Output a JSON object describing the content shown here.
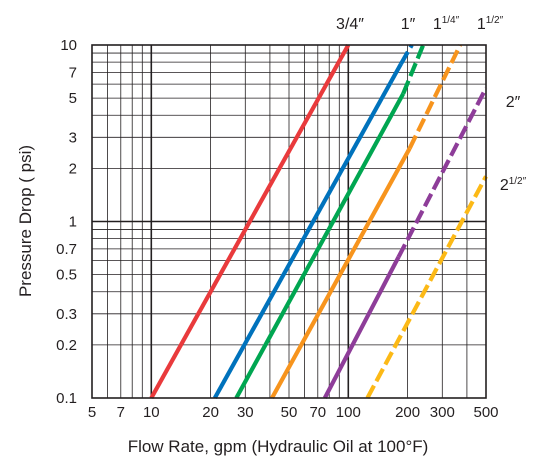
{
  "chart_data": {
    "type": "line",
    "xlabel": "Flow Rate, gpm (Hydraulic Oil at 100°F)",
    "ylabel": "Pressure Drop ( psi)",
    "xscale": "log",
    "yscale": "log",
    "xlim": [
      5,
      500
    ],
    "ylim": [
      0.1,
      10
    ],
    "grid": true,
    "x_ticks": [
      {
        "value": 5,
        "label": "5"
      },
      {
        "value": 7,
        "label": "7"
      },
      {
        "value": 10,
        "label": "10"
      },
      {
        "value": 20,
        "label": "20"
      },
      {
        "value": 30,
        "label": "30"
      },
      {
        "value": 50,
        "label": "50"
      },
      {
        "value": 70,
        "label": "70"
      },
      {
        "value": 100,
        "label": "100"
      },
      {
        "value": 200,
        "label": "200"
      },
      {
        "value": 300,
        "label": "300"
      },
      {
        "value": 500,
        "label": "500"
      }
    ],
    "y_ticks": [
      {
        "value": 0.1,
        "label": "0.1"
      },
      {
        "value": 0.2,
        "label": "0.2"
      },
      {
        "value": 0.3,
        "label": "0.3"
      },
      {
        "value": 0.5,
        "label": "0.5"
      },
      {
        "value": 0.7,
        "label": "0.7"
      },
      {
        "value": 1,
        "label": "1"
      },
      {
        "value": 2,
        "label": "2"
      },
      {
        "value": 3,
        "label": "3"
      },
      {
        "value": 5,
        "label": "5"
      },
      {
        "value": 7,
        "label": "7"
      },
      {
        "value": 10,
        "label": "10"
      }
    ],
    "series": [
      {
        "label_main": "3/4″",
        "label_sup": "",
        "color": "#e93a3c",
        "solid": [
          [
            10,
            0.1
          ],
          [
            100,
            10
          ]
        ],
        "dashed": []
      },
      {
        "label_main": "1″",
        "label_sup": "",
        "color": "#0072bc",
        "solid": [
          [
            21,
            0.1
          ],
          [
            185,
            7.8
          ]
        ],
        "dashed": [
          [
            185,
            7.8
          ],
          [
            210,
            10
          ]
        ]
      },
      {
        "label_main": "1",
        "label_sup": "1/4″",
        "color": "#00a651",
        "solid": [
          [
            27,
            0.1
          ],
          [
            190,
            5.3
          ]
        ],
        "dashed": [
          [
            190,
            5.3
          ],
          [
            240,
            10
          ]
        ]
      },
      {
        "label_main": "1",
        "label_sup": "1/2″",
        "color": "#f7941d",
        "solid": [
          [
            41,
            0.1
          ],
          [
            205,
            2.6
          ]
        ],
        "dashed": [
          [
            205,
            2.6
          ],
          [
            370,
            10
          ]
        ]
      },
      {
        "label_main": "2″",
        "label_sup": "",
        "color": "#8e3d99",
        "solid": [
          [
            76,
            0.1
          ],
          [
            180,
            0.63
          ]
        ],
        "dashed": [
          [
            180,
            0.63
          ],
          [
            500,
            5.7
          ]
        ]
      },
      {
        "label_main": "2",
        "label_sup": "1/2″",
        "color": "#fcb916",
        "solid": [],
        "dashed": [
          [
            125,
            0.1
          ],
          [
            500,
            1.8
          ]
        ]
      }
    ]
  }
}
